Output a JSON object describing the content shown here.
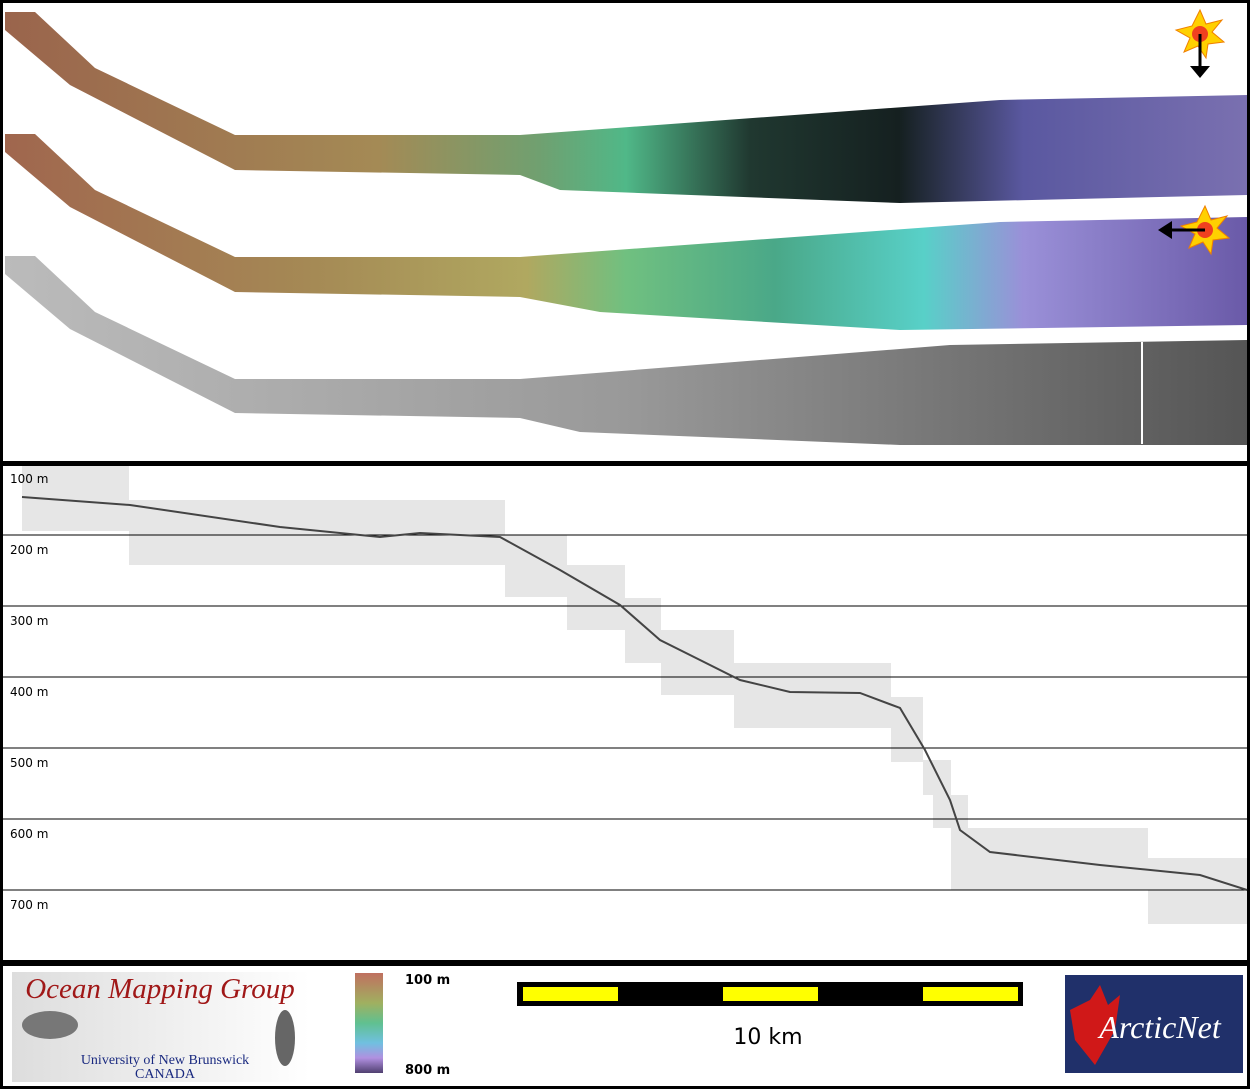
{
  "depth_labels": [
    "100 m",
    "200 m",
    "300 m",
    "400 m",
    "500 m",
    "600 m",
    "700 m"
  ],
  "colorbar": {
    "top": "100 m",
    "bottom": "800 m"
  },
  "scale_bar": "10 km",
  "logos": {
    "omg": {
      "title": "Ocean Mapping Group",
      "line1": "University of New Brunswick",
      "line2": "CANADA"
    },
    "arcticnet": "ArcticNet"
  }
}
